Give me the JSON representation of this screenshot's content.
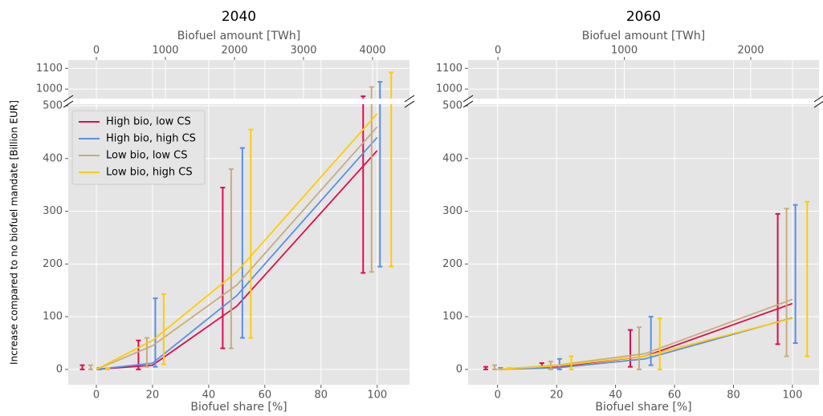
{
  "chart_data": [
    {
      "type": "line",
      "title": "2040",
      "xlabel": "Biofuel share [%]",
      "x2label": "Biofuel amount [TWh]",
      "ylabel": "Increase compared to no biofuel mandate [Billion EUR]",
      "xlim": [
        -10,
        111.5
      ],
      "xticks": [
        0,
        20,
        40,
        60,
        80,
        100
      ],
      "x2lim": [
        -407,
        4535
      ],
      "x2ticks": [
        0,
        1000,
        2000,
        3000,
        4000
      ],
      "ylim": [
        -29,
        503
      ],
      "yticks": [
        0,
        100,
        200,
        300,
        400,
        500
      ],
      "ylim_top": [
        954,
        1140
      ],
      "yticks_top": [
        1000,
        1100
      ],
      "grid": true,
      "legend": "upper left",
      "series": [
        {
          "name": "High bio, low CS",
          "color": "#dc0d4e",
          "x": [
            0,
            20,
            50,
            100
          ],
          "values": [
            0,
            8,
            120,
            415
          ],
          "range_x": [
            -5,
            15,
            45,
            95
          ],
          "range_min": [
            0,
            0,
            40,
            183
          ],
          "range_max": [
            8,
            55,
            345,
            965
          ]
        },
        {
          "name": "High bio, high CS",
          "color": "#5b8fe0",
          "x": [
            0,
            20,
            50,
            100
          ],
          "values": [
            0,
            12,
            140,
            440
          ],
          "range_x": [
            1,
            21,
            52,
            101
          ],
          "range_min": [
            0,
            5,
            60,
            195
          ],
          "range_max": [
            3,
            135,
            420,
            1035
          ]
        },
        {
          "name": "Low bio, low CS",
          "color": "#c8ab80",
          "x": [
            0,
            20,
            50,
            100
          ],
          "values": [
            0,
            45,
            160,
            460
          ],
          "range_x": [
            -2,
            18,
            48,
            98
          ],
          "range_min": [
            0,
            5,
            40,
            185
          ],
          "range_max": [
            8,
            60,
            380,
            1010
          ]
        },
        {
          "name": "Low bio, high CS",
          "color": "#ffcc00",
          "x": [
            0,
            20,
            50,
            100
          ],
          "values": [
            0,
            55,
            185,
            485
          ],
          "range_x": [
            4,
            24,
            55,
            105
          ],
          "range_min": [
            0,
            10,
            60,
            195
          ],
          "range_max": [
            3,
            143,
            455,
            1080
          ]
        }
      ]
    },
    {
      "type": "line",
      "title": "2060",
      "xlabel": "Biofuel share [%]",
      "x2label": "Biofuel amount [TWh]",
      "xlim": [
        -10,
        109
      ],
      "xticks": [
        0,
        20,
        40,
        60,
        80,
        100
      ],
      "x2lim": [
        -236,
        2540
      ],
      "x2ticks": [
        0,
        1000,
        2000
      ],
      "ylim": [
        -29,
        503
      ],
      "yticks": [
        0,
        100,
        200,
        300,
        400,
        500
      ],
      "ylim_top": [
        954,
        1140
      ],
      "yticks_top": [
        1000,
        1100
      ],
      "grid": true,
      "series": [
        {
          "color": "#dc0d4e",
          "x": [
            0,
            20,
            50,
            100
          ],
          "values": [
            0,
            5,
            25,
            125
          ],
          "range_x": [
            -4,
            15,
            45,
            95
          ],
          "range_min": [
            0,
            3,
            5,
            48
          ],
          "range_max": [
            5,
            12,
            75,
            295
          ]
        },
        {
          "color": "#5b8fe0",
          "x": [
            0,
            20,
            50,
            100
          ],
          "values": [
            0,
            3,
            20,
            98
          ],
          "range_x": [
            1,
            21,
            52,
            101
          ],
          "range_min": [
            0,
            0,
            8,
            50
          ],
          "range_max": [
            3,
            20,
            100,
            312
          ]
        },
        {
          "color": "#c8ab80",
          "x": [
            0,
            20,
            50,
            100
          ],
          "values": [
            0,
            8,
            30,
            133
          ],
          "range_x": [
            -1,
            18,
            48,
            98
          ],
          "range_min": [
            0,
            0,
            0,
            25
          ],
          "range_max": [
            8,
            15,
            80,
            305
          ]
        },
        {
          "color": "#ffcc00",
          "x": [
            0,
            20,
            50,
            100
          ],
          "values": [
            0,
            7,
            25,
            97
          ],
          "range_x": [
            4,
            25,
            55,
            105
          ],
          "range_min": [
            0,
            0,
            0,
            25
          ],
          "range_max": [
            3,
            25,
            97,
            318
          ]
        }
      ]
    }
  ]
}
